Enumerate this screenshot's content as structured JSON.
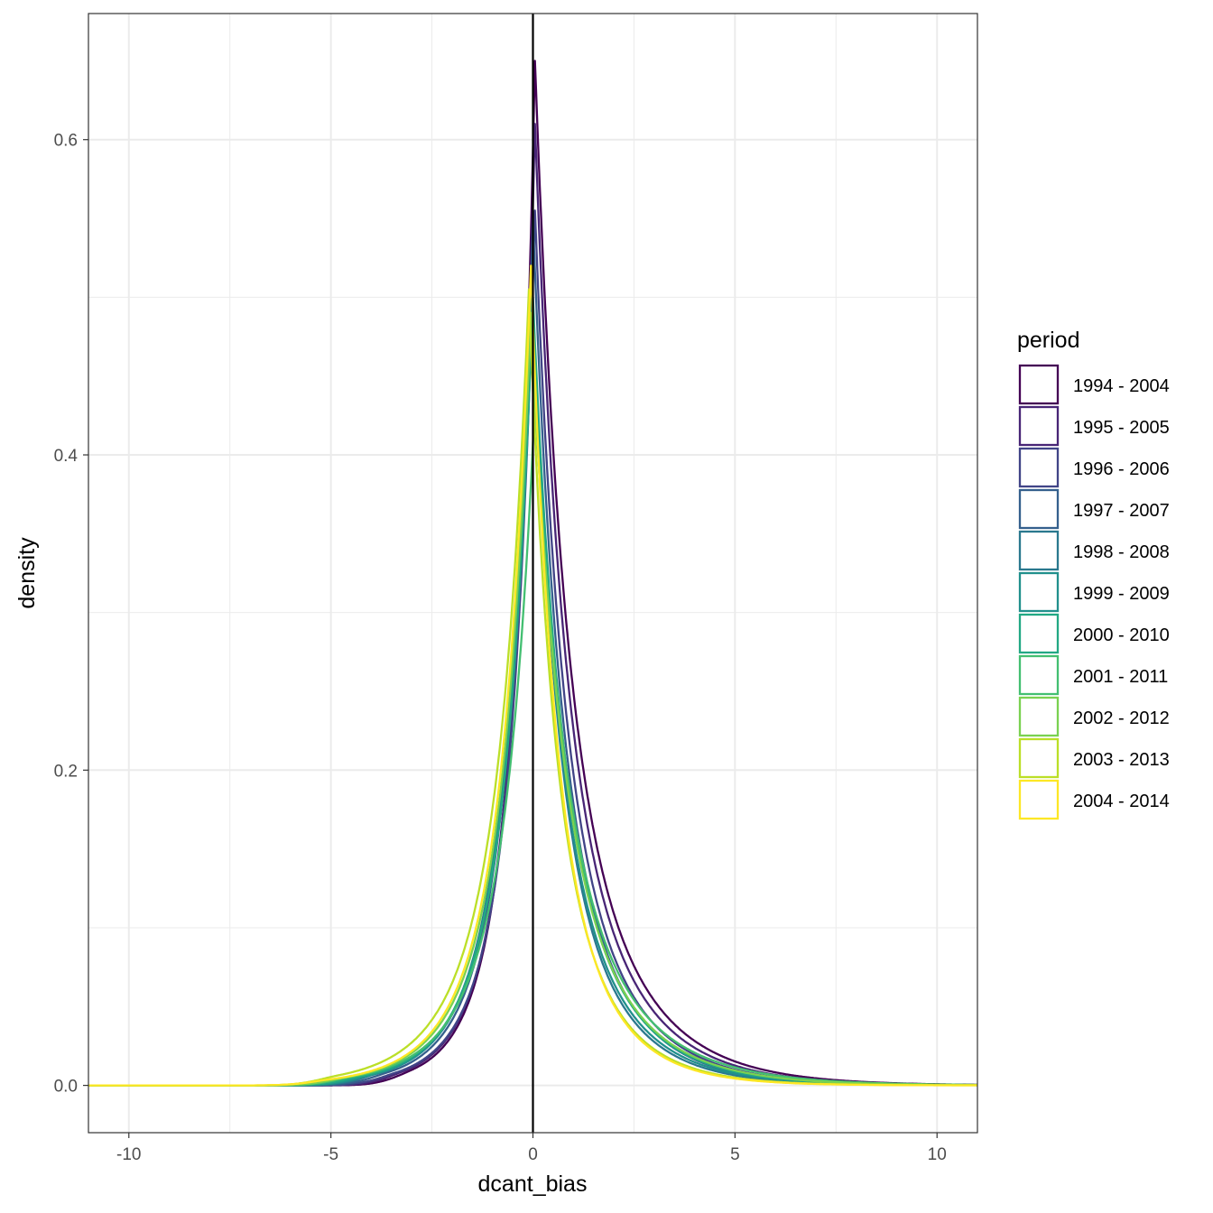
{
  "chart_data": {
    "type": "line",
    "xlabel": "dcant_bias",
    "ylabel": "density",
    "xlim": [
      -11,
      11
    ],
    "ylim": [
      -0.03,
      0.68
    ],
    "x_ticks": [
      -10,
      -5,
      0,
      5,
      10
    ],
    "x_tick_labels": [
      "-10",
      "-5",
      "0",
      "5",
      "10"
    ],
    "y_ticks": [
      0.0,
      0.2,
      0.4,
      0.6
    ],
    "y_tick_labels": [
      "0.0",
      "0.2",
      "0.4",
      "0.6"
    ],
    "grid": true,
    "vline_x": 0,
    "legend_title": "period",
    "legend_position": "right",
    "series": [
      {
        "name": "1994 - 2004",
        "color": "#440154",
        "peak": 0.65,
        "peak_x": 0.05,
        "left_scale": 0.85,
        "right_scale": 1.25,
        "left_tail_start": -3.0
      },
      {
        "name": "1995 - 2005",
        "color": "#482576",
        "peak": 0.61,
        "peak_x": 0.05,
        "left_scale": 0.9,
        "right_scale": 1.2,
        "left_tail_start": -3.2
      },
      {
        "name": "1996 - 2006",
        "color": "#414487",
        "peak": 0.555,
        "peak_x": 0.05,
        "left_scale": 0.95,
        "right_scale": 1.15,
        "left_tail_start": -3.4
      },
      {
        "name": "1997 - 2007",
        "color": "#35608D",
        "peak": 0.55,
        "peak_x": 0.0,
        "left_scale": 1.0,
        "right_scale": 1.1,
        "left_tail_start": -3.6
      },
      {
        "name": "1998 - 2008",
        "color": "#2A788E",
        "peak": 0.52,
        "peak_x": -0.05,
        "left_scale": 1.05,
        "right_scale": 1.05,
        "left_tail_start": -3.8
      },
      {
        "name": "1999 - 2009",
        "color": "#21908C",
        "peak": 0.51,
        "peak_x": -0.05,
        "left_scale": 1.05,
        "right_scale": 1.1,
        "left_tail_start": -4.0
      },
      {
        "name": "2000 - 2010",
        "color": "#22A884",
        "peak": 0.5,
        "peak_x": 0.0,
        "left_scale": 1.1,
        "right_scale": 1.15,
        "left_tail_start": -4.2
      },
      {
        "name": "2001 - 2011",
        "color": "#43BF71",
        "peak": 0.435,
        "peak_x": 0.05,
        "left_scale": 1.2,
        "right_scale": 1.3,
        "left_tail_start": -4.4
      },
      {
        "name": "2002 - 2012",
        "color": "#7AD151",
        "peak": 0.49,
        "peak_x": -0.05,
        "left_scale": 1.15,
        "right_scale": 1.2,
        "left_tail_start": -4.6
      },
      {
        "name": "2003 - 2013",
        "color": "#BBDF27",
        "peak": 0.505,
        "peak_x": -0.1,
        "left_scale": 1.25,
        "right_scale": 1.0,
        "left_tail_start": -4.8
      },
      {
        "name": "2004 - 2014",
        "color": "#FDE725",
        "peak": 0.52,
        "peak_x": -0.05,
        "left_scale": 1.15,
        "right_scale": 0.95,
        "left_tail_start": -5.0
      }
    ]
  }
}
